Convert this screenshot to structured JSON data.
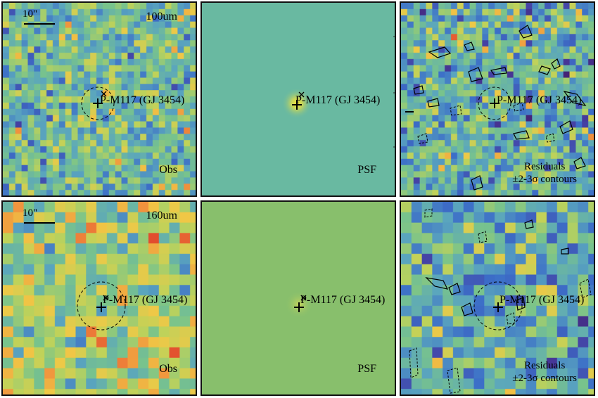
{
  "rows": [
    {
      "band": "100um",
      "scale_label": "10\"",
      "panels": [
        {
          "kind": "obs",
          "label": "Obs",
          "source": "P-M117 (GJ 3454)"
        },
        {
          "kind": "psf",
          "label": "PSF",
          "source": "P-M117 (GJ 3454)"
        },
        {
          "kind": "resid",
          "label_line1": "Residuals",
          "label_line2": "±2-3σ contours",
          "source": "P-M117 (GJ 3454)"
        }
      ]
    },
    {
      "band": "160um",
      "scale_label": "10\"",
      "panels": [
        {
          "kind": "obs",
          "label": "Obs",
          "source": "P-M117 (GJ 3454)"
        },
        {
          "kind": "psf",
          "label": "PSF",
          "source": "P-M117 (GJ 3454)"
        },
        {
          "kind": "resid",
          "label_line1": "Residuals",
          "label_line2": "±2-3σ contours",
          "source": "P-M117 (GJ 3454)"
        }
      ]
    }
  ],
  "colors": {
    "frame": "#111111",
    "psf_bg_row1": "#69b9a1",
    "psf_bg_row2": "#88bf6c"
  }
}
